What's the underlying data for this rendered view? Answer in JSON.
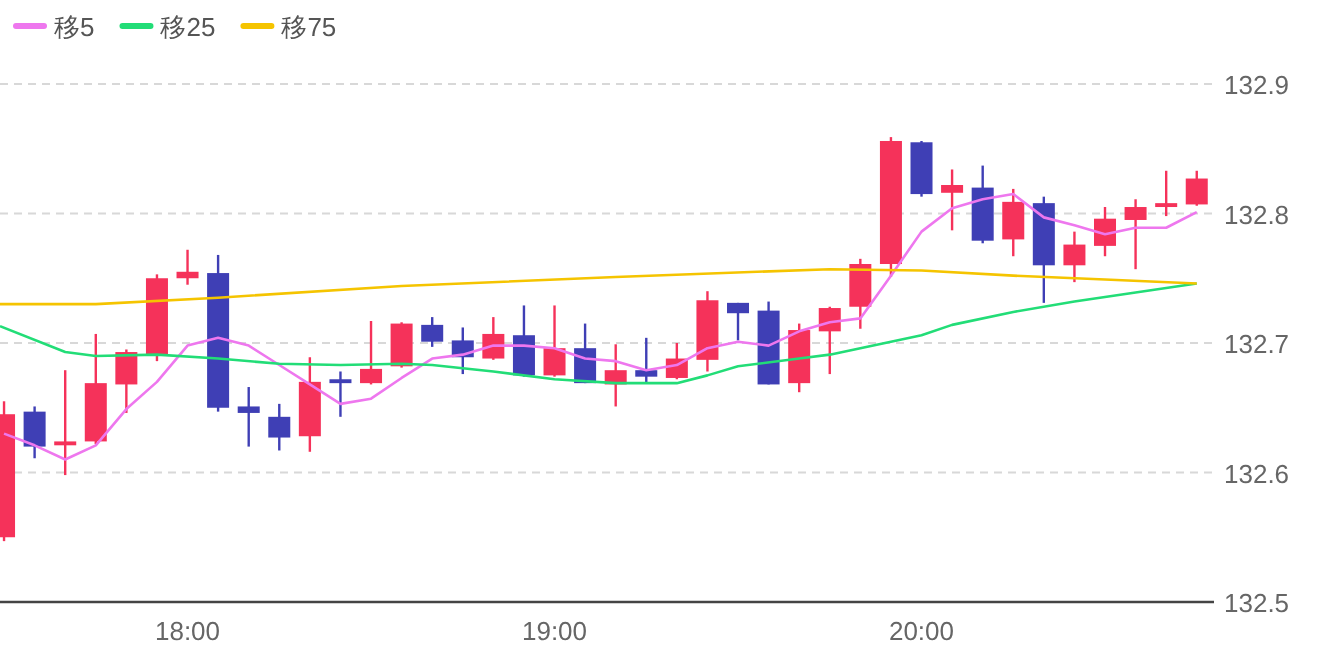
{
  "chart_data": {
    "type": "candlestick",
    "x": [
      17.5,
      17.5833,
      17.6667,
      17.75,
      17.8333,
      17.9167,
      18,
      18.0833,
      18.1667,
      18.25,
      18.3333,
      18.4167,
      18.5,
      18.5833,
      18.6667,
      18.75,
      18.8333,
      18.9167,
      19,
      19.0833,
      19.1667,
      19.25,
      19.3333,
      19.4167,
      19.5,
      19.5833,
      19.6667,
      19.75,
      19.8333,
      19.9167,
      20,
      20.0833,
      20.1667,
      20.25,
      20.3333,
      20.4167,
      20.5,
      20.5833,
      20.6667,
      20.75
    ],
    "ohlc": [
      [
        132.55,
        132.655,
        132.547,
        132.645
      ],
      [
        132.647,
        132.651,
        132.611,
        132.62
      ],
      [
        132.621,
        132.679,
        132.598,
        132.624
      ],
      [
        132.624,
        132.707,
        132.622,
        132.669
      ],
      [
        132.668,
        132.695,
        132.646,
        132.693
      ],
      [
        132.691,
        132.753,
        132.686,
        132.75
      ],
      [
        132.75,
        132.772,
        132.745,
        132.755
      ],
      [
        132.754,
        132.768,
        132.647,
        132.65
      ],
      [
        132.651,
        132.666,
        132.62,
        132.646
      ],
      [
        132.643,
        132.653,
        132.617,
        132.627
      ],
      [
        132.628,
        132.689,
        132.616,
        132.67
      ],
      [
        132.672,
        132.678,
        132.643,
        132.669
      ],
      [
        132.669,
        132.717,
        132.668,
        132.68
      ],
      [
        132.682,
        132.716,
        132.681,
        132.715
      ],
      [
        132.714,
        132.72,
        132.697,
        132.701
      ],
      [
        132.702,
        132.712,
        132.676,
        132.689
      ],
      [
        132.688,
        132.72,
        132.687,
        132.707
      ],
      [
        132.706,
        132.729,
        132.674,
        132.675
      ],
      [
        132.675,
        132.729,
        132.674,
        132.696
      ],
      [
        132.696,
        132.715,
        132.669,
        132.669
      ],
      [
        132.668,
        132.699,
        132.651,
        132.679
      ],
      [
        132.679,
        132.704,
        132.669,
        132.674
      ],
      [
        132.673,
        132.7,
        132.672,
        132.688
      ],
      [
        132.687,
        132.74,
        132.678,
        132.733
      ],
      [
        132.731,
        132.731,
        132.702,
        132.723
      ],
      [
        132.725,
        132.732,
        132.668,
        132.668
      ],
      [
        132.669,
        132.715,
        132.662,
        132.71
      ],
      [
        132.709,
        132.728,
        132.676,
        132.727
      ],
      [
        132.728,
        132.765,
        132.711,
        132.761
      ],
      [
        132.761,
        132.859,
        132.751,
        132.856
      ],
      [
        132.855,
        132.856,
        132.813,
        132.815
      ],
      [
        132.816,
        132.834,
        132.787,
        132.822
      ],
      [
        132.82,
        132.837,
        132.777,
        132.779
      ],
      [
        132.78,
        132.819,
        132.767,
        132.809
      ],
      [
        132.808,
        132.813,
        132.731,
        132.76
      ],
      [
        132.76,
        132.786,
        132.747,
        132.776
      ],
      [
        132.775,
        132.805,
        132.767,
        132.796
      ],
      [
        132.795,
        132.811,
        132.757,
        132.805
      ],
      [
        132.805,
        132.833,
        132.798,
        132.808
      ],
      [
        132.807,
        132.833,
        132.806,
        132.827
      ]
    ],
    "colors": [
      "#f5325a",
      "#3f3fb5",
      "#f5325a",
      "#f5325a",
      "#f5325a",
      "#f5325a",
      "#f5325a",
      "#3f3fb5",
      "#3f3fb5",
      "#3f3fb5",
      "#f5325a",
      "#3f3fb5",
      "#f5325a",
      "#f5325a",
      "#3f3fb5",
      "#3f3fb5",
      "#f5325a",
      "#3f3fb5",
      "#f5325a",
      "#3f3fb5",
      "#f5325a",
      "#3f3fb5",
      "#f5325a",
      "#f5325a",
      "#3f3fb5",
      "#3f3fb5",
      "#f5325a",
      "#f5325a",
      "#f5325a",
      "#f5325a",
      "#3f3fb5",
      "#f5325a",
      "#3f3fb5",
      "#f5325a",
      "#3f3fb5",
      "#f5325a",
      "#f5325a",
      "#f5325a",
      "#f5325a",
      "#f5325a"
    ],
    "series": [
      {
        "name": "移5",
        "type": "line",
        "color": "#ee77ee",
        "x": [
          17.5,
          17.5833,
          17.6667,
          17.75,
          17.8333,
          17.9167,
          18,
          18.0833,
          18.1667,
          18.25,
          18.3333,
          18.4167,
          18.5,
          18.5833,
          18.6667,
          18.75,
          18.8333,
          18.9167,
          19,
          19.0833,
          19.1667,
          19.25,
          19.3333,
          19.4167,
          19.5,
          19.5833,
          19.6667,
          19.75,
          19.8333,
          19.9167,
          20,
          20.0833,
          20.1667,
          20.25,
          20.3333,
          20.4167,
          20.5,
          20.5833,
          20.6667,
          20.75
        ],
        "values": [
          132.63,
          132.621,
          132.61,
          132.621,
          132.649,
          132.67,
          132.698,
          132.704,
          132.698,
          132.683,
          132.668,
          132.653,
          132.657,
          132.673,
          132.688,
          132.691,
          132.698,
          132.698,
          132.696,
          132.688,
          132.686,
          132.679,
          132.683,
          132.696,
          132.701,
          132.698,
          132.709,
          132.716,
          132.719,
          132.752,
          132.786,
          132.804,
          132.811,
          132.815,
          132.797,
          132.791,
          132.784,
          132.789,
          132.789,
          132.801
        ]
      },
      {
        "name": "移25",
        "type": "line",
        "color": "#22dd77",
        "x": [
          17.489,
          17.6667,
          17.75,
          17.9167,
          18.0833,
          18.25,
          18.4167,
          18.5833,
          18.6667,
          18.8333,
          19,
          19.1667,
          19.3333,
          19.4167,
          19.5,
          19.6667,
          19.75,
          19.8333,
          19.9167,
          20,
          20.0833,
          20.25,
          20.4167,
          20.5833,
          20.75
        ],
        "values": [
          132.713,
          132.693,
          132.69,
          132.691,
          132.688,
          132.684,
          132.683,
          132.684,
          132.683,
          132.678,
          132.672,
          132.669,
          132.669,
          132.675,
          132.682,
          132.688,
          132.691,
          132.696,
          132.701,
          132.706,
          132.714,
          132.724,
          132.732,
          132.739,
          132.746
        ]
      },
      {
        "name": "移75",
        "type": "line",
        "color": "#f5c400",
        "x": [
          17.489,
          17.75,
          18.0833,
          18.5833,
          19.1667,
          19.75,
          20,
          20.25,
          20.5,
          20.75
        ],
        "values": [
          132.73,
          132.73,
          132.735,
          132.744,
          132.751,
          132.757,
          132.756,
          132.752,
          132.749,
          132.746
        ]
      }
    ],
    "xlim": [
      17.489,
      20.797
    ],
    "xticks": [
      {
        "value": 18,
        "label": "18:00"
      },
      {
        "value": 19,
        "label": "19:00"
      },
      {
        "value": 20,
        "label": "20:00"
      }
    ],
    "ylim": [
      132.5,
      132.9
    ],
    "yticks": [
      132.5,
      132.6,
      132.7,
      132.8,
      132.9
    ],
    "grid": "y",
    "legend": "top left",
    "line_style": "solid",
    "marker": "none"
  }
}
